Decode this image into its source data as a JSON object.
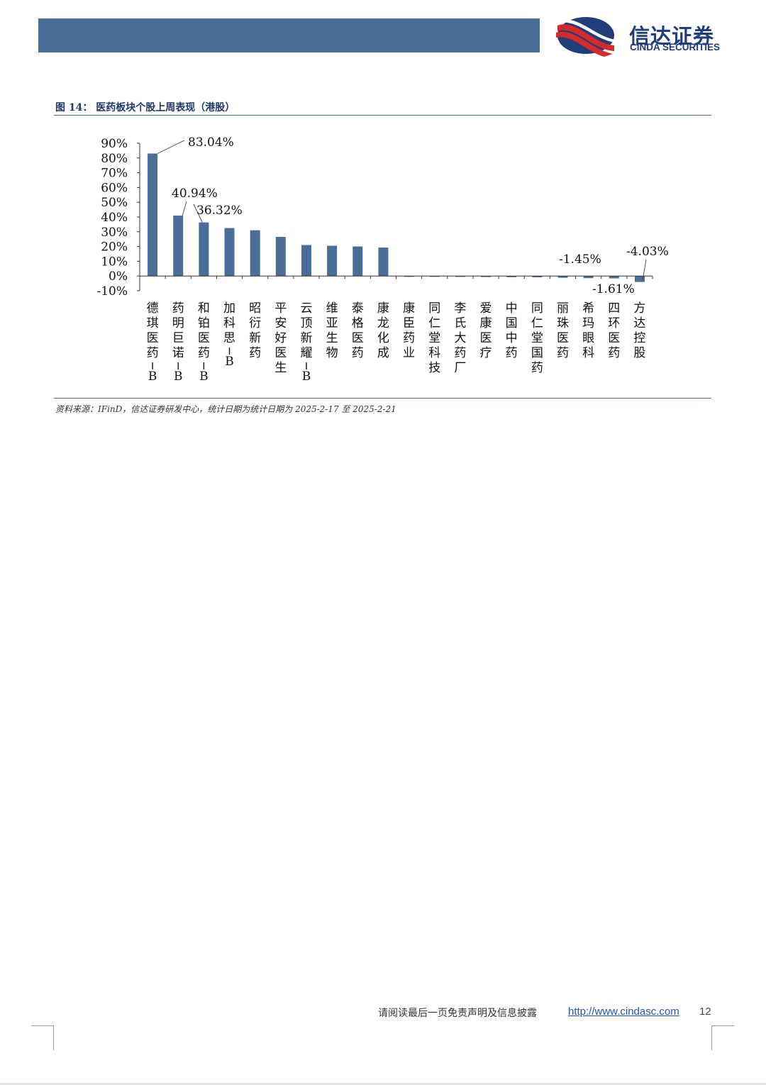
{
  "header": {
    "logo_cn": "信达证券",
    "logo_en": "CINDA SECURITIES",
    "colors": {
      "bar": "#4a6e97",
      "logo_red": "#d42a2a",
      "logo_navy": "#1f3e7a"
    }
  },
  "figure": {
    "title": "图 14：  医药板块个股上周表现（港股）",
    "source": "资料来源：IFinD，信达证券研发中心，统计日期为统计日期为 2025-2-17 至 2025-2-21"
  },
  "chart_data": {
    "type": "bar",
    "title": "",
    "xlabel": "",
    "ylabel": "",
    "ylim": [
      -10,
      90
    ],
    "yticks": [
      "90%",
      "80%",
      "70%",
      "60%",
      "50%",
      "40%",
      "30%",
      "20%",
      "10%",
      "0%",
      "-10%"
    ],
    "grid": false,
    "legend": "none",
    "bar_color": "#4a6e97",
    "categories": [
      "德琪医药-B",
      "药明巨诺-B",
      "和铂医药-B",
      "加科思-B",
      "昭衍新药",
      "平安好医生",
      "云顶新耀-B",
      "维亚生物",
      "泰格医药",
      "康龙化成",
      "康臣药业",
      "同仁堂科技",
      "李氏大药厂",
      "爱康医疗",
      "中国中药",
      "同仁堂国药",
      "丽珠医药",
      "希玛眼科",
      "四环医药",
      "方达控股"
    ],
    "values": [
      83.04,
      40.94,
      36.32,
      32.5,
      31.0,
      26.5,
      21.0,
      20.5,
      20.0,
      19.3,
      -0.3,
      -0.4,
      -0.6,
      -0.7,
      -0.8,
      -0.9,
      -1.2,
      -1.45,
      -1.61,
      -4.03
    ],
    "data_labels": [
      {
        "index": 0,
        "text": "83.04%"
      },
      {
        "index": 1,
        "text": "40.94%"
      },
      {
        "index": 2,
        "text": "36.32%"
      },
      {
        "index": 17,
        "text": "-1.45%"
      },
      {
        "index": 18,
        "text": "-1.61%"
      },
      {
        "index": 19,
        "text": "-4.03%"
      }
    ]
  },
  "footer": {
    "disclaimer": "请阅读最后一页免责声明及信息披露",
    "link": "http://www.cindasc.com",
    "page_number": "12"
  }
}
